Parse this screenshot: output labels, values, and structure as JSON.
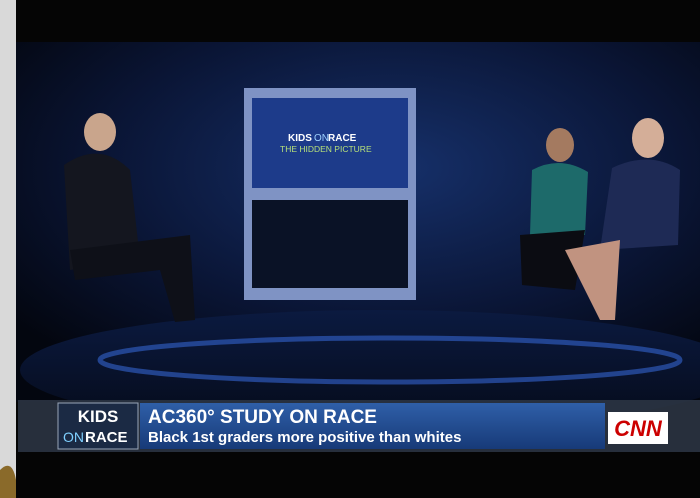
{
  "broadcast": {
    "monitor": {
      "kids": "KIDS",
      "on": "ON",
      "race": "RACE",
      "subtitle": "THE HIDDEN PICTURE"
    },
    "lower_third": {
      "logo": {
        "top": "KIDS",
        "on": "ON",
        "race": "RACE"
      },
      "headline": "AC360° STUDY ON RACE",
      "subheadline": "Black 1st graders more positive than whites",
      "network": "CNN"
    }
  }
}
